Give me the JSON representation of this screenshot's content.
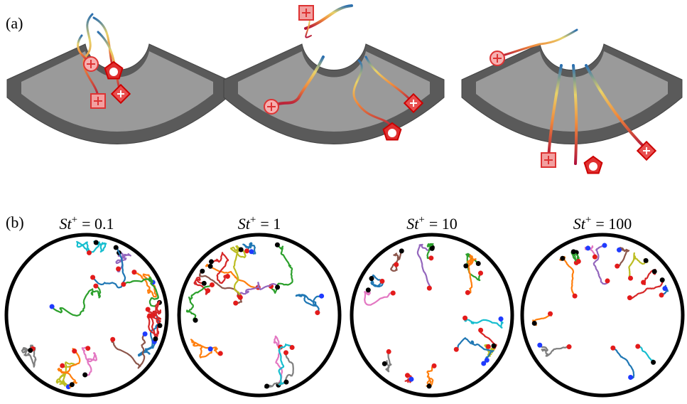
{
  "panels": {
    "a": {
      "label": "(a)"
    },
    "b": {
      "label": "(b)",
      "titles": [
        {
          "symbol": "St",
          "superscript": "+",
          "value": "= 0.1"
        },
        {
          "symbol": "St",
          "superscript": "+",
          "value": "= 1"
        },
        {
          "symbol": "St",
          "superscript": "+",
          "value": "= 10"
        },
        {
          "symbol": "St",
          "superscript": "+",
          "value": "= 100"
        }
      ]
    }
  }
}
